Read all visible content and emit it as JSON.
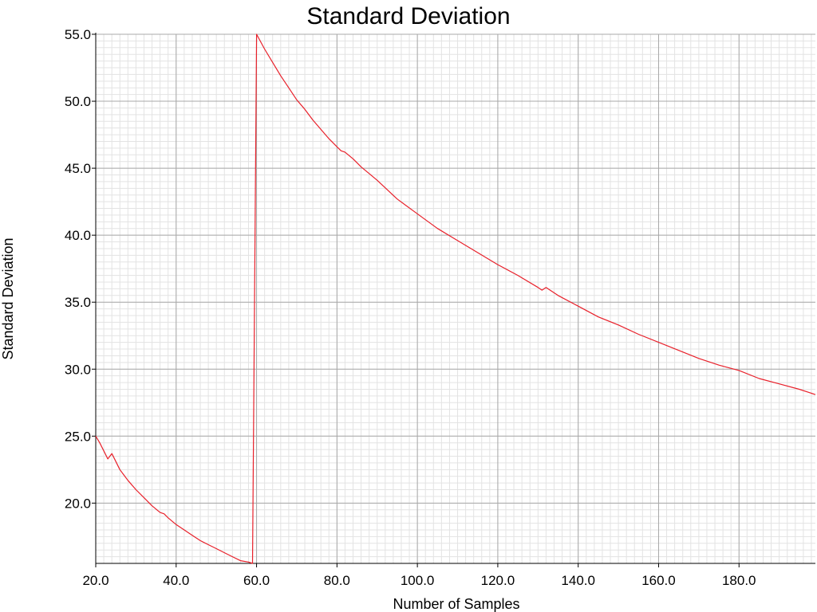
{
  "chart_data": {
    "type": "line",
    "title": "Standard Deviation",
    "xlabel": "Number of Samples",
    "ylabel": "Standard Deviation",
    "xlim": [
      20,
      199
    ],
    "ylim": [
      15.5,
      55
    ],
    "x_ticks": [
      20,
      40,
      60,
      80,
      100,
      120,
      140,
      160,
      180
    ],
    "x_tick_labels": [
      "20.0",
      "40.0",
      "60.0",
      "80.0",
      "100.0",
      "120.0",
      "140.0",
      "160.0",
      "180.0"
    ],
    "y_ticks": [
      20,
      25,
      30,
      35,
      40,
      45,
      50,
      55
    ],
    "y_tick_labels": [
      "20.0",
      "25.0",
      "30.0",
      "35.0",
      "40.0",
      "45.0",
      "50.0",
      "55.0"
    ],
    "grid": true,
    "minor_grid": true,
    "series_color": "#e8202a",
    "series": [
      {
        "x": [
          20,
          21,
          22,
          23,
          24,
          25,
          26,
          27,
          28,
          30,
          32,
          34,
          36,
          37,
          38,
          40,
          42,
          44,
          46,
          48,
          50,
          52,
          54,
          56,
          58,
          59,
          60,
          62,
          64,
          66,
          68,
          70,
          72,
          74,
          76,
          78,
          80,
          81,
          82,
          84,
          86,
          88,
          90,
          95,
          100,
          105,
          110,
          115,
          120,
          125,
          130,
          131,
          132,
          135,
          140,
          145,
          150,
          155,
          160,
          165,
          170,
          175,
          180,
          185,
          190,
          195,
          197,
          199
        ],
        "y": [
          25.0,
          24.5,
          23.9,
          23.3,
          23.7,
          23.1,
          22.5,
          22.1,
          21.7,
          21.0,
          20.4,
          19.8,
          19.3,
          19.2,
          18.9,
          18.4,
          18.0,
          17.6,
          17.2,
          16.9,
          16.6,
          16.3,
          16.0,
          15.7,
          15.6,
          15.5,
          55.0,
          53.9,
          52.9,
          51.9,
          51.0,
          50.1,
          49.4,
          48.6,
          47.9,
          47.2,
          46.6,
          46.3,
          46.2,
          45.7,
          45.1,
          44.6,
          44.1,
          42.7,
          41.6,
          40.5,
          39.6,
          38.7,
          37.8,
          37.0,
          36.1,
          35.9,
          36.1,
          35.5,
          34.7,
          33.9,
          33.3,
          32.6,
          32.0,
          31.4,
          30.8,
          30.3,
          29.9,
          29.3,
          28.9,
          28.5,
          28.3,
          28.1
        ]
      }
    ]
  }
}
